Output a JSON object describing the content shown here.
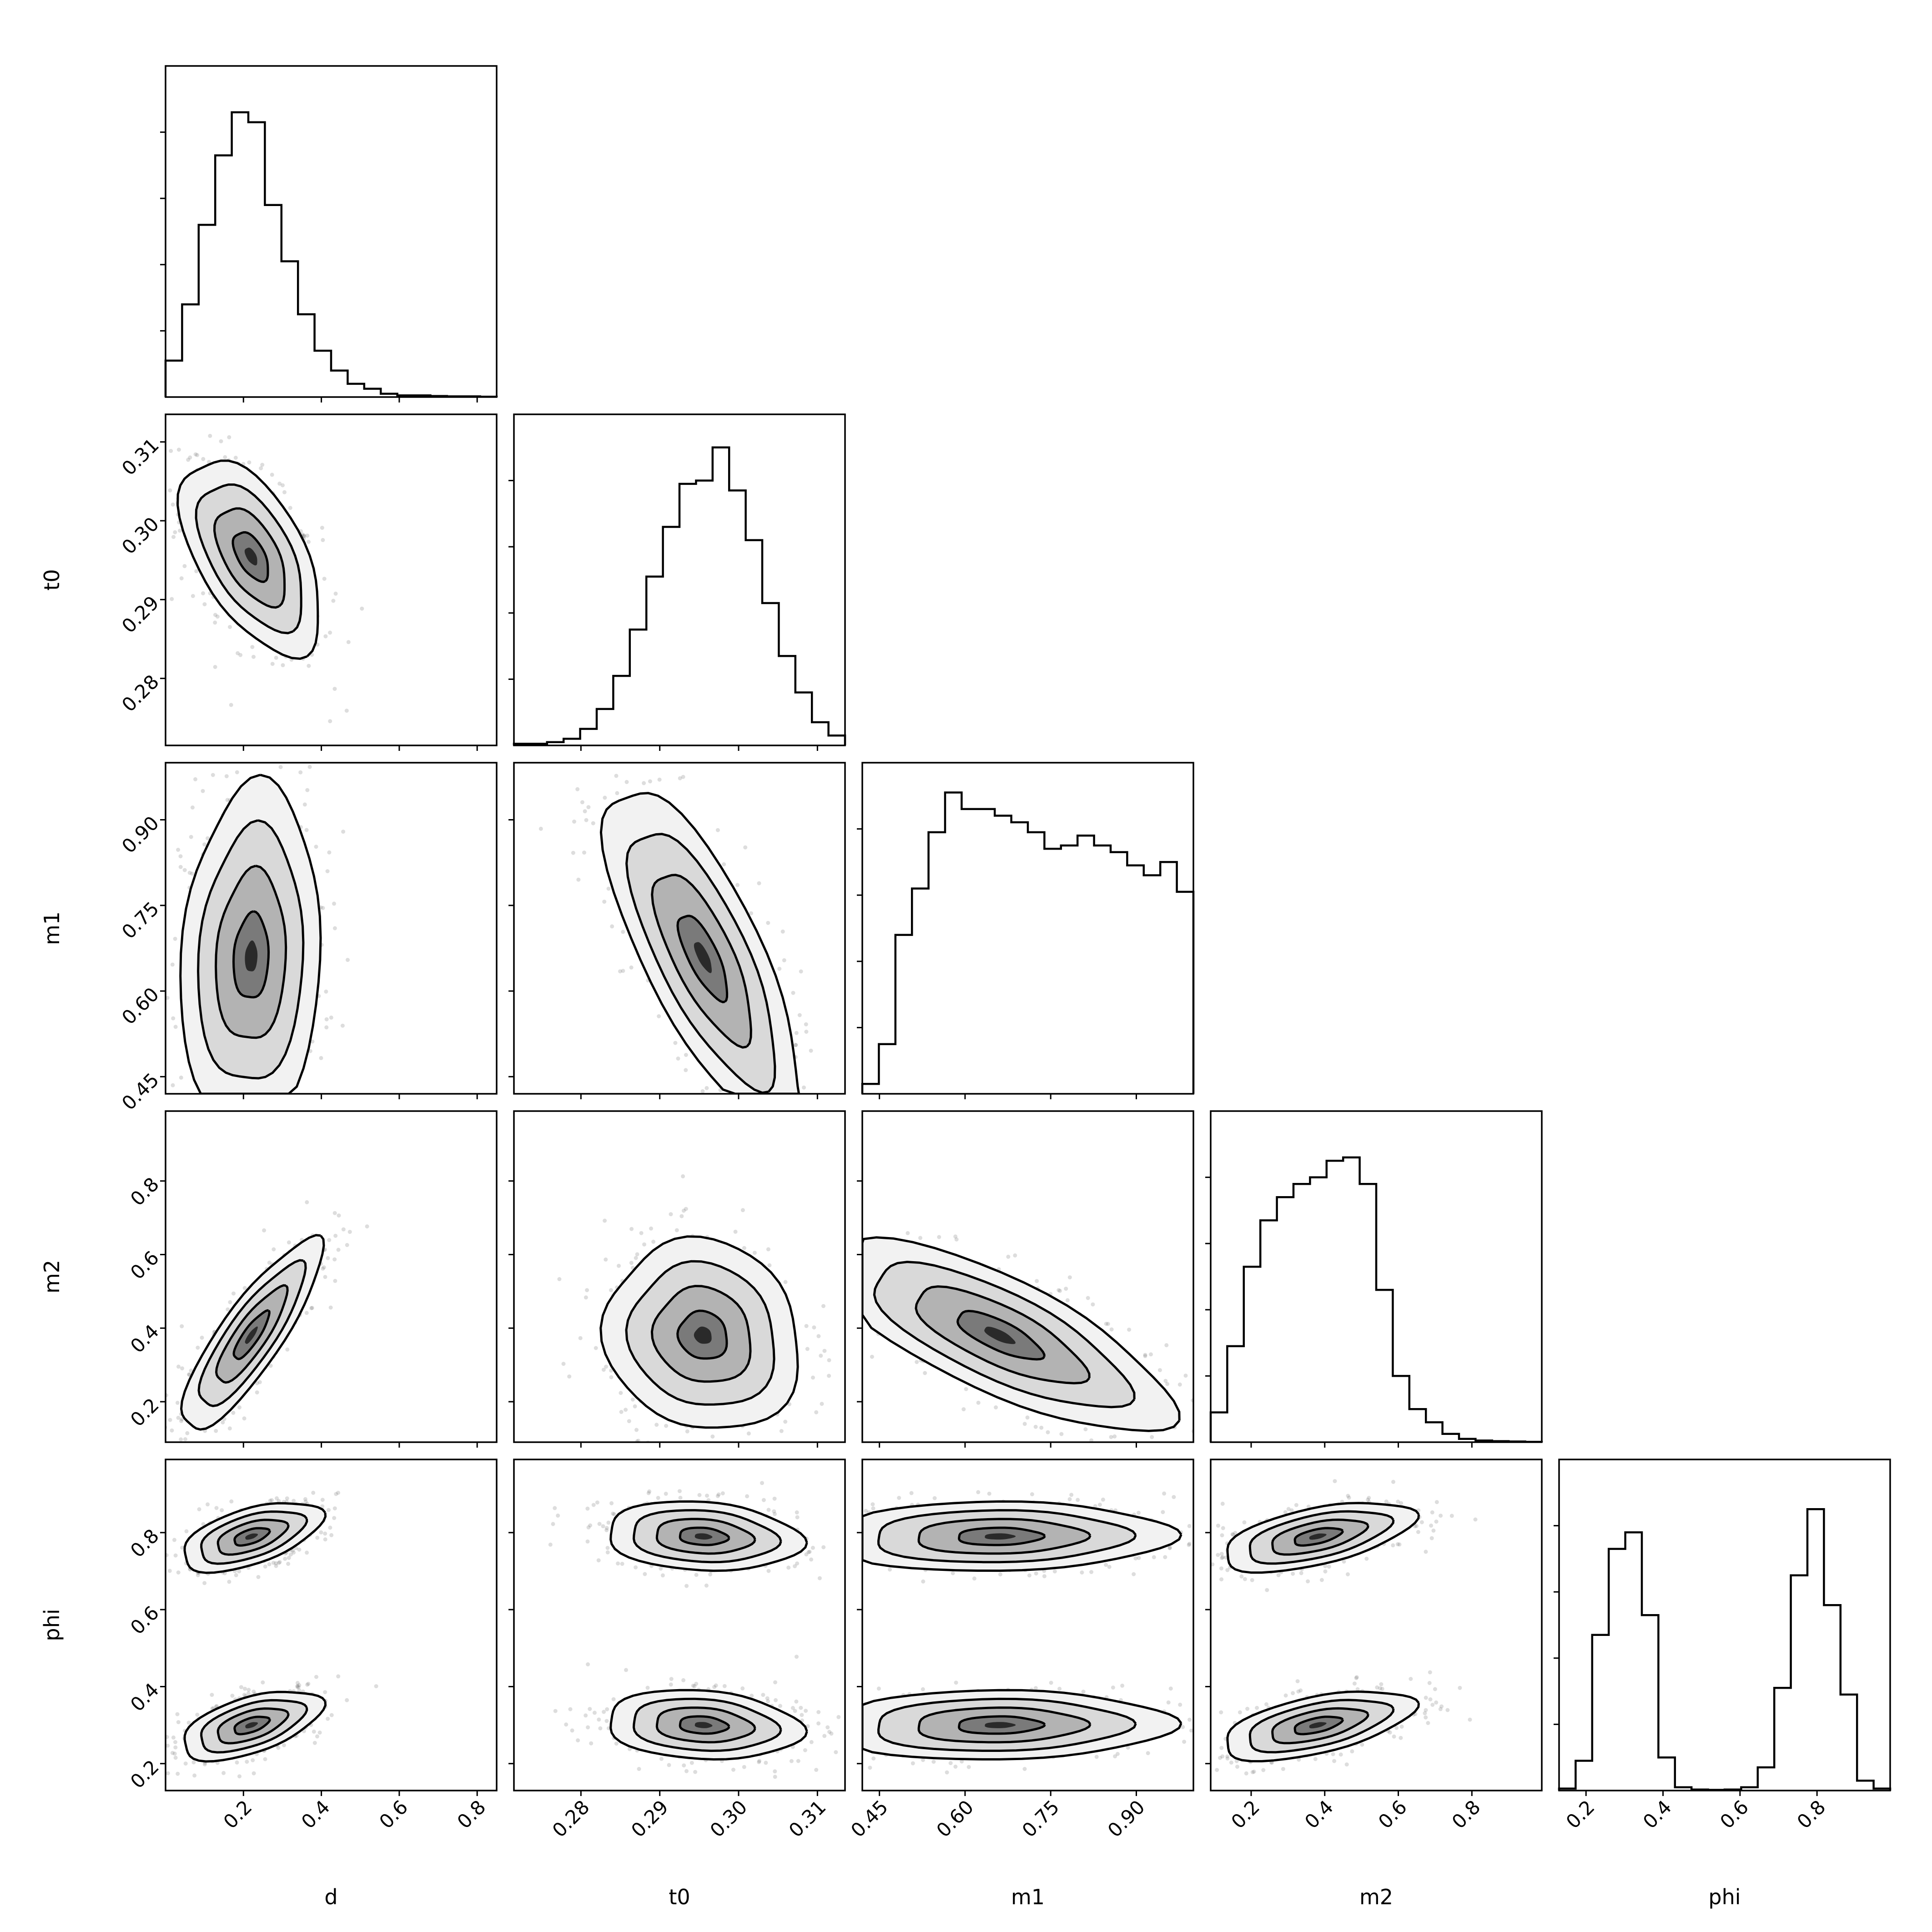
{
  "chart_data": {
    "type": "corner",
    "parameters": [
      {
        "name": "d",
        "range": [
          0.0,
          0.85
        ],
        "ticks": [
          "0.2",
          "0.4",
          "0.6",
          "0.8"
        ],
        "tick_values": [
          0.2,
          0.4,
          0.6,
          0.8
        ]
      },
      {
        "name": "t0",
        "range": [
          0.2715,
          0.3135
        ],
        "ticks": [
          "0.28",
          "0.29",
          "0.30",
          "0.31"
        ],
        "tick_values": [
          0.28,
          0.29,
          0.3,
          0.31
        ]
      },
      {
        "name": "m1",
        "range": [
          0.42,
          1.0
        ],
        "ticks": [
          "0.45",
          "0.60",
          "0.75",
          "0.90"
        ],
        "tick_values": [
          0.45,
          0.6,
          0.75,
          0.9
        ]
      },
      {
        "name": "m2",
        "range": [
          0.09,
          0.99
        ],
        "ticks": [
          "0.2",
          "0.4",
          "0.6",
          "0.8"
        ],
        "tick_values": [
          0.2,
          0.4,
          0.6,
          0.8
        ]
      },
      {
        "name": "phi",
        "range": [
          0.13,
          0.99
        ],
        "ticks": [
          "0.2",
          "0.4",
          "0.6",
          "0.8"
        ],
        "tick_values": [
          0.2,
          0.4,
          0.6,
          0.8
        ]
      }
    ],
    "histograms": {
      "d": [
        0.11,
        0.28,
        0.52,
        0.73,
        0.86,
        0.83,
        0.58,
        0.41,
        0.25,
        0.14,
        0.08,
        0.04,
        0.025,
        0.01,
        0.005,
        0.005,
        0.003,
        0.002,
        0.002,
        0.001
      ],
      "t0": [
        0.005,
        0.005,
        0.01,
        0.02,
        0.05,
        0.11,
        0.21,
        0.35,
        0.51,
        0.66,
        0.79,
        0.8,
        0.9,
        0.77,
        0.62,
        0.43,
        0.27,
        0.16,
        0.07,
        0.03
      ],
      "m1": [
        0.03,
        0.15,
        0.48,
        0.62,
        0.79,
        0.91,
        0.86,
        0.86,
        0.84,
        0.82,
        0.79,
        0.74,
        0.75,
        0.78,
        0.75,
        0.73,
        0.69,
        0.66,
        0.7,
        0.61
      ],
      "m2": [
        0.09,
        0.29,
        0.53,
        0.67,
        0.74,
        0.78,
        0.8,
        0.85,
        0.86,
        0.78,
        0.46,
        0.2,
        0.1,
        0.06,
        0.025,
        0.01,
        0.005,
        0.003,
        0.002,
        0.001
      ],
      "phi": [
        0.006,
        0.09,
        0.47,
        0.73,
        0.78,
        0.53,
        0.1,
        0.01,
        0.003,
        0.002,
        0.003,
        0.01,
        0.07,
        0.31,
        0.65,
        0.85,
        0.56,
        0.29,
        0.03,
        0.006
      ]
    },
    "grid": false,
    "legend": "none"
  }
}
